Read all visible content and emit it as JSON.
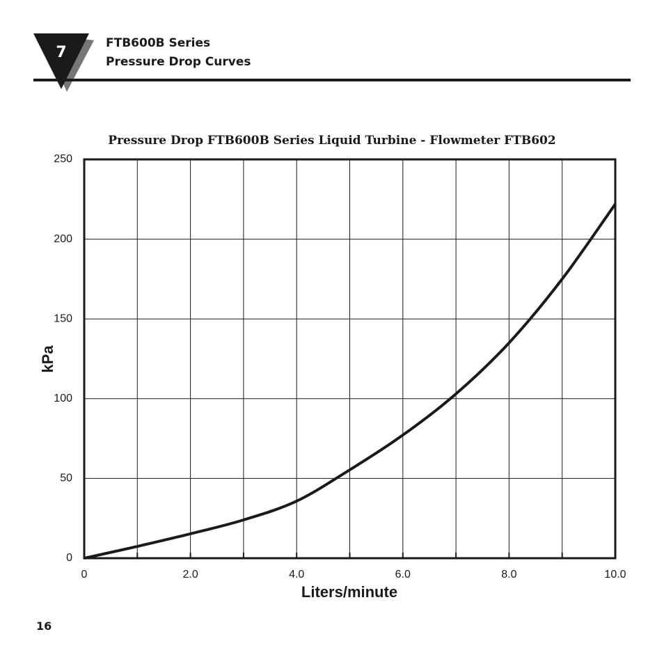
{
  "header": {
    "chapter": "7",
    "title": "FTB600B Series",
    "subtitle": "Pressure Drop Curves"
  },
  "chart_data": {
    "type": "line",
    "title": "Pressure Drop FTB600B Series Liquid Turbine  - Flowmeter FTB602",
    "x_label": "Liters/minute",
    "y_label": "kPa",
    "x": [
      0,
      1,
      2,
      3,
      4,
      5,
      6,
      7,
      8,
      9,
      10
    ],
    "series": [
      {
        "name": "FTB602",
        "color": "#1a1a1a",
        "values": [
          0,
          7.4,
          15.3,
          24,
          35.8,
          55.4,
          77.2,
          103,
          135,
          175,
          222
        ]
      }
    ],
    "xlim": [
      0,
      10
    ],
    "ylim": [
      0,
      250
    ],
    "xticks": [
      0,
      {
        "value": 2,
        "label": "2.0"
      },
      {
        "value": 4,
        "label": "4.0"
      },
      {
        "value": 6,
        "label": "6.0"
      },
      {
        "value": 8,
        "label": "8.0"
      },
      {
        "value": 10,
        "label": "10.0"
      }
    ],
    "xminor": [
      1,
      3,
      5,
      7,
      9
    ],
    "yticks": [
      0,
      50,
      100,
      150,
      200,
      250
    ],
    "grid": true
  },
  "footer": {
    "page": "16"
  }
}
